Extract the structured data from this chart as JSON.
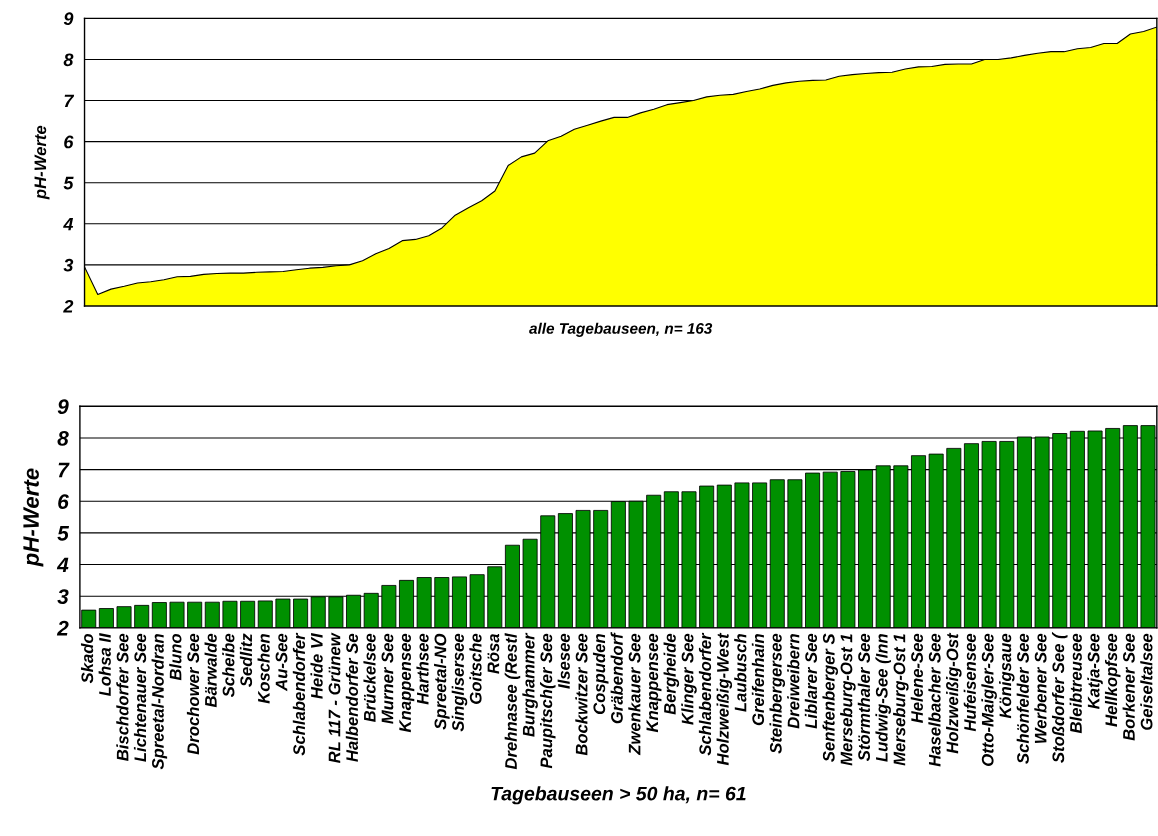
{
  "chart_data": [
    {
      "type": "area",
      "xlabel": "alle Tagebauseen, n= 163",
      "ylabel": "pH-Werte",
      "color": "#ffff00",
      "ylim": [
        2,
        9
      ],
      "yticks": [
        2,
        3,
        4,
        5,
        6,
        7,
        8,
        9
      ],
      "grid": "y",
      "tick_labels": "y",
      "categories": [
        null,
        null,
        null,
        null,
        null,
        null,
        null,
        null,
        null,
        null,
        null,
        null,
        null,
        null,
        null,
        null,
        null,
        null,
        null,
        null,
        null,
        null,
        null,
        null,
        null,
        null,
        null,
        null,
        null,
        null,
        null,
        null,
        null,
        null,
        null,
        null,
        null,
        null,
        null,
        null,
        null,
        null,
        null,
        null,
        null,
        null,
        null,
        null,
        null,
        null,
        null,
        null,
        null,
        null,
        null,
        null,
        null,
        null,
        null,
        null,
        null,
        null,
        null,
        null,
        null,
        null,
        null,
        null,
        null,
        null,
        null,
        null,
        null,
        null,
        null,
        null,
        null,
        null,
        null,
        null,
        null,
        null
      ],
      "values": [
        2.95,
        2.28,
        2.41,
        2.48,
        2.56,
        2.59,
        2.64,
        2.71,
        2.72,
        2.77,
        2.79,
        2.8,
        2.8,
        2.82,
        2.83,
        2.84,
        2.88,
        2.92,
        2.94,
        2.98,
        3.0,
        3.1,
        3.27,
        3.4,
        3.59,
        3.62,
        3.71,
        3.9,
        4.21,
        4.39,
        4.56,
        4.8,
        5.42,
        5.63,
        5.72,
        6.02,
        6.13,
        6.3,
        6.4,
        6.5,
        6.59,
        6.59,
        6.7,
        6.79,
        6.9,
        6.95,
        7.0,
        7.09,
        7.13,
        7.15,
        7.22,
        7.28,
        7.37,
        7.43,
        7.47,
        7.49,
        7.5,
        7.59,
        7.63,
        7.66,
        7.68,
        7.69,
        7.77,
        7.82,
        7.83,
        7.88,
        7.89,
        7.89,
        8.0,
        8.0,
        8.04,
        8.1,
        8.15,
        8.19,
        8.19,
        8.26,
        8.29,
        8.39,
        8.39,
        8.62,
        8.68,
        8.79
      ]
    },
    {
      "type": "bar",
      "xlabel": "Tagebauseen > 50 ha, n= 61",
      "ylabel": "pH-Werte",
      "color": "#009000",
      "ylim": [
        2,
        9
      ],
      "yticks": [
        2,
        3,
        4,
        5,
        6,
        7,
        8,
        9
      ],
      "grid": "y",
      "categories": [
        "Skado",
        "Lohsa II",
        "Bischdorfer See",
        "Lichtenauer See",
        "Spreetal-Nordran",
        "Bluno",
        "Drochower See",
        "Bärwalde",
        "Scheibe",
        "Sedlitz",
        "Koschen",
        "Au-See",
        "Schlabendorfer",
        "Heide VI",
        "RL 117 - Grünew",
        "Halbendorfer Se",
        "Brückelsee",
        "Murner See",
        "Knappensee",
        "Harthsee",
        "Spreetal-NO",
        "Singlisersee",
        "Goitsche",
        "Rösa",
        "Drehnasee (Restl",
        "Burghammer",
        "Paupitsch(er See",
        "Ilsesee",
        "Bockwitzer See",
        "Cospuden",
        "Gräbendorf",
        "Zwenkauer See",
        "Knappensee",
        "Bergheide",
        "Klinger See",
        "Schlabendorfer",
        "Holzweißig-West",
        "Laubusch",
        "Greifenhain",
        "Steinbergersee",
        "Dreiweibern",
        "Liblarer See",
        "Senftenberger S",
        "Merseburg-Ost 1",
        "Störmthaler See",
        "Ludwig-See (Inn",
        "Merseburg-Ost 1",
        "Helene-See",
        "Haselbacher See",
        "Holzweißig-Ost",
        "Hufeisensee",
        "Otto-Maigler-See",
        "Königsaue",
        "Schönfelder See",
        "Werbener See",
        "Stoßdorfer See (",
        "Bleibtreusee",
        "Katja-See",
        "Hellkopfsee",
        "Borkener See",
        "Geiseltalsee"
      ],
      "values": [
        2.56,
        2.61,
        2.67,
        2.71,
        2.8,
        2.81,
        2.81,
        2.81,
        2.84,
        2.84,
        2.85,
        2.91,
        2.91,
        2.98,
        2.98,
        3.03,
        3.09,
        3.34,
        3.5,
        3.59,
        3.59,
        3.61,
        3.68,
        3.93,
        4.61,
        4.8,
        5.54,
        5.61,
        5.71,
        5.71,
        5.99,
        6.0,
        6.19,
        6.3,
        6.3,
        6.48,
        6.51,
        6.58,
        6.58,
        6.68,
        6.68,
        6.89,
        6.92,
        6.94,
        6.99,
        7.12,
        7.12,
        7.44,
        7.49,
        7.67,
        7.82,
        7.89,
        7.89,
        8.03,
        8.03,
        8.14,
        8.21,
        8.22,
        8.3,
        8.39,
        8.39
      ]
    }
  ]
}
